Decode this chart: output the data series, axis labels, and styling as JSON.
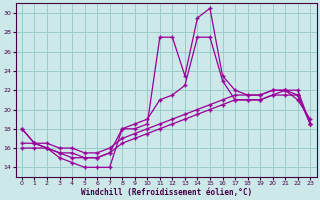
{
  "xlabel": "Windchill (Refroidissement éolien,°C)",
  "bg_color": "#cce8e8",
  "grid_color": "#99cccc",
  "line_color": "#990099",
  "xlim": [
    -0.5,
    23.5
  ],
  "ylim": [
    13,
    31
  ],
  "yticks": [
    14,
    16,
    18,
    20,
    22,
    24,
    26,
    28,
    30
  ],
  "xticks": [
    0,
    1,
    2,
    3,
    4,
    5,
    6,
    7,
    8,
    9,
    10,
    11,
    12,
    13,
    14,
    15,
    16,
    17,
    18,
    19,
    20,
    21,
    22,
    23
  ],
  "line1_x": [
    0,
    1,
    2,
    3,
    4,
    5,
    6,
    7,
    8,
    9,
    10,
    11,
    12,
    13,
    14,
    15,
    16,
    17,
    18,
    19,
    20,
    21,
    22,
    23
  ],
  "line1_y": [
    18,
    16.5,
    16,
    15,
    14.5,
    14,
    14,
    14,
    18,
    18,
    18.5,
    27.5,
    27.5,
    23.5,
    29.5,
    30.5,
    23.5,
    22,
    21.5,
    21.5,
    22,
    22,
    21,
    19
  ],
  "line2_x": [
    0,
    1,
    2,
    3,
    4,
    5,
    6,
    7,
    8,
    9,
    10,
    11,
    12,
    13,
    14,
    15,
    16,
    17,
    18,
    19,
    20,
    21,
    22,
    23
  ],
  "line2_y": [
    18,
    16.5,
    16,
    15.5,
    15,
    15,
    15,
    15.5,
    18,
    18.5,
    19,
    21,
    21.5,
    22.5,
    27.5,
    27.5,
    23,
    21,
    21,
    21,
    21.5,
    22,
    21.5,
    18.5
  ],
  "line3_x": [
    0,
    1,
    2,
    3,
    4,
    5,
    6,
    7,
    8,
    9,
    10,
    11,
    12,
    13,
    14,
    15,
    16,
    17,
    18,
    19,
    20,
    21,
    22,
    23
  ],
  "line3_y": [
    16,
    16,
    16,
    15.5,
    15.5,
    15,
    15,
    15.5,
    16.5,
    17,
    17.5,
    18,
    18.5,
    19,
    19.5,
    20,
    20.5,
    21,
    21,
    21,
    21.5,
    21.5,
    21.5,
    18.5
  ],
  "line4_x": [
    0,
    1,
    2,
    3,
    4,
    5,
    6,
    7,
    8,
    9,
    10,
    11,
    12,
    13,
    14,
    15,
    16,
    17,
    18,
    19,
    20,
    21,
    22,
    23
  ],
  "line4_y": [
    16.5,
    16.5,
    16.5,
    16,
    16,
    15.5,
    15.5,
    16,
    17,
    17.5,
    18,
    18.5,
    19,
    19.5,
    20,
    20.5,
    21,
    21.5,
    21.5,
    21.5,
    22,
    22,
    22,
    18.5
  ]
}
